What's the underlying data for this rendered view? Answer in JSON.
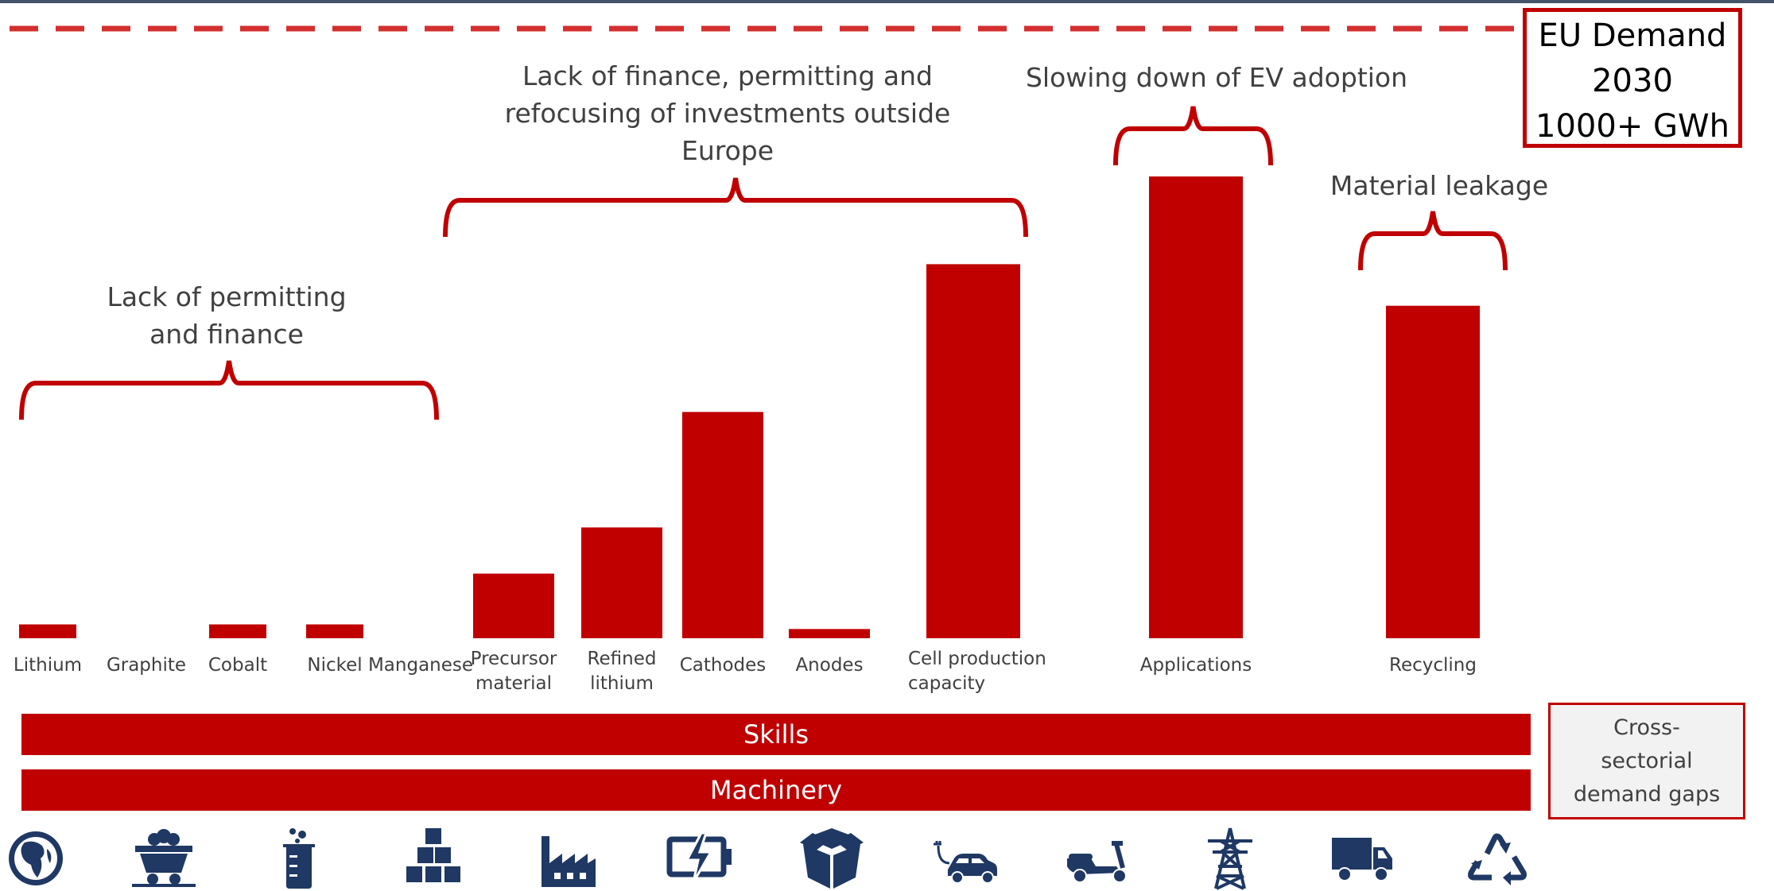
{
  "chart_data": {
    "type": "bar",
    "categories": [
      "Lithium",
      "Graphite",
      "Cobalt",
      "Nickel",
      "Manganese",
      "Precursor material",
      "Refined lithium",
      "Cathodes",
      "Anodes",
      "Cell production capacity",
      "Applications",
      "Recycling"
    ],
    "category_lines": [
      [
        "Lithium"
      ],
      [
        "Graphite"
      ],
      [
        "Cobalt"
      ],
      [
        "Nickel"
      ],
      [
        "Manganese"
      ],
      [
        "Precursor",
        "material"
      ],
      [
        "Refined",
        "lithium"
      ],
      [
        "Cathodes"
      ],
      [
        "Anodes"
      ],
      [
        "Cell production",
        "capacity"
      ],
      [
        "Applications"
      ],
      [
        "Recycling"
      ]
    ],
    "values": [
      3,
      0,
      3,
      3,
      0,
      14,
      24,
      49,
      2,
      81,
      100,
      72
    ],
    "value_unit": "approx. % of top bar height (no axis shown)",
    "target_line": {
      "label_lines": [
        "EU Demand",
        "2030",
        "1000+ GWh"
      ],
      "style": "dashed",
      "color": "#d32f2f"
    },
    "annotations": [
      {
        "lines": [
          "Lack of permitting",
          "and finance"
        ],
        "from": 0,
        "to": 4
      },
      {
        "lines": [
          "Lack of finance, permitting and",
          "refocusing of investments outside",
          "Europe"
        ],
        "from": 5,
        "to": 9
      },
      {
        "lines": [
          "Slowing down of EV adoption"
        ],
        "from": 10,
        "to": 10
      },
      {
        "lines": [
          "Material leakage"
        ],
        "from": 11,
        "to": 11
      }
    ],
    "bands": [
      "Skills",
      "Machinery"
    ],
    "bands_group_label_lines": [
      "Cross-",
      "sectorial",
      "demand gaps"
    ],
    "grid": false,
    "legend": "none",
    "colors": {
      "bar": "#c00000",
      "label": "#404040",
      "icon": "#1f3864",
      "target": "#d32f2f"
    }
  },
  "icons": [
    "globe-icon",
    "mine-cart-icon",
    "beaker-icon",
    "stacked-boxes-icon",
    "factory-icon",
    "battery-icon",
    "open-box-icon",
    "electric-car-icon",
    "scooter-icon",
    "power-pylon-icon",
    "truck-icon",
    "recycle-icon"
  ]
}
